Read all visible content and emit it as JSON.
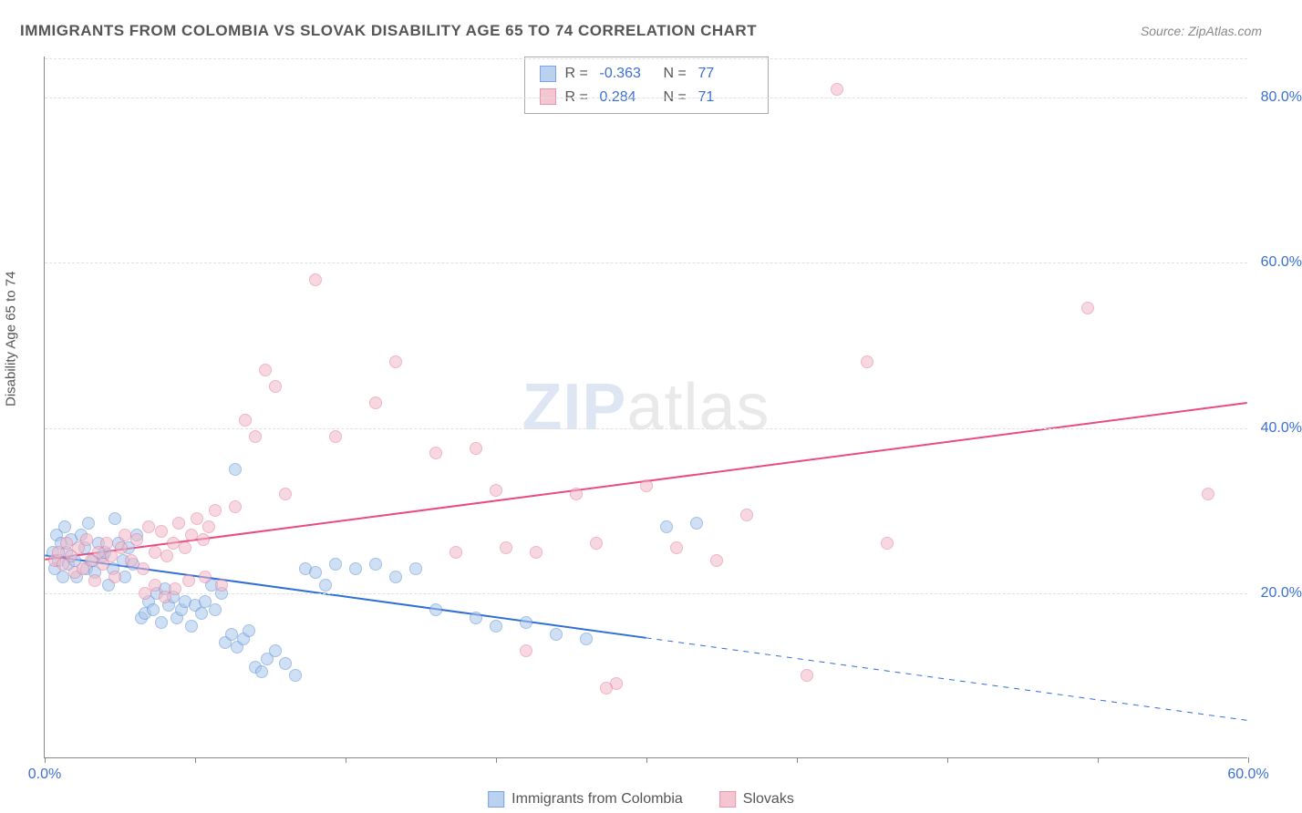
{
  "title": "IMMIGRANTS FROM COLOMBIA VS SLOVAK DISABILITY AGE 65 TO 74 CORRELATION CHART",
  "source": "Source: ZipAtlas.com",
  "y_axis_label": "Disability Age 65 to 74",
  "watermark_bold": "ZIP",
  "watermark_rest": "atlas",
  "chart": {
    "type": "scatter",
    "xlim": [
      0,
      60
    ],
    "ylim": [
      0,
      85
    ],
    "x_tick_origin_label": "0.0%",
    "x_tick_end_label": "60.0%",
    "x_tick_positions": [
      0,
      7.5,
      15,
      22.5,
      30,
      37.5,
      45,
      52.5,
      60
    ],
    "y_ticks": [
      20,
      40,
      60,
      80
    ],
    "y_tick_labels": [
      "20.0%",
      "40.0%",
      "60.0%",
      "80.0%"
    ],
    "grid_color": "#e0e0e0",
    "background_color": "#ffffff",
    "axis_color": "#888888",
    "tick_label_color": "#3b6fd6",
    "marker_radius": 7,
    "marker_stroke_width": 1,
    "series": [
      {
        "id": "colombia",
        "label": "Immigrants from Colombia",
        "fill": "#a9c6ec",
        "stroke": "#5a8fd6",
        "fill_opacity": 0.55,
        "R": "-0.363",
        "N": "77",
        "trend": {
          "x1": 0,
          "y1": 24.5,
          "x2": 30,
          "y2": 14.5,
          "x3": 60,
          "y3": 4.5,
          "color": "#2f6fd6",
          "width": 2
        },
        "points": [
          [
            0.4,
            25
          ],
          [
            0.5,
            23
          ],
          [
            0.6,
            27
          ],
          [
            0.7,
            24
          ],
          [
            0.8,
            26
          ],
          [
            0.9,
            22
          ],
          [
            1.0,
            28
          ],
          [
            1.1,
            25
          ],
          [
            1.2,
            23.5
          ],
          [
            1.3,
            26.5
          ],
          [
            1.5,
            24
          ],
          [
            1.6,
            22
          ],
          [
            1.8,
            27
          ],
          [
            2.0,
            25.5
          ],
          [
            2.1,
            23
          ],
          [
            2.2,
            28.5
          ],
          [
            2.4,
            24
          ],
          [
            2.5,
            22.5
          ],
          [
            2.7,
            26
          ],
          [
            2.9,
            24.5
          ],
          [
            3.0,
            25
          ],
          [
            3.2,
            21
          ],
          [
            3.4,
            23
          ],
          [
            3.5,
            29
          ],
          [
            3.7,
            26
          ],
          [
            3.9,
            24
          ],
          [
            4.0,
            22
          ],
          [
            4.2,
            25.5
          ],
          [
            4.4,
            23.5
          ],
          [
            4.6,
            27
          ],
          [
            4.8,
            17
          ],
          [
            5.0,
            17.5
          ],
          [
            5.2,
            19
          ],
          [
            5.4,
            18
          ],
          [
            5.6,
            20
          ],
          [
            5.8,
            16.5
          ],
          [
            6.0,
            20.5
          ],
          [
            6.2,
            18.5
          ],
          [
            6.4,
            19.5
          ],
          [
            6.6,
            17
          ],
          [
            6.8,
            18
          ],
          [
            7.0,
            19
          ],
          [
            7.3,
            16
          ],
          [
            7.5,
            18.5
          ],
          [
            7.8,
            17.5
          ],
          [
            8.0,
            19
          ],
          [
            8.3,
            21
          ],
          [
            8.5,
            18
          ],
          [
            8.8,
            20
          ],
          [
            9.0,
            14
          ],
          [
            9.3,
            15
          ],
          [
            9.6,
            13.5
          ],
          [
            9.9,
            14.5
          ],
          [
            10.2,
            15.5
          ],
          [
            10.5,
            11
          ],
          [
            10.8,
            10.5
          ],
          [
            11.1,
            12
          ],
          [
            11.5,
            13
          ],
          [
            12.0,
            11.5
          ],
          [
            12.5,
            10
          ],
          [
            9.5,
            35
          ],
          [
            13.0,
            23
          ],
          [
            13.5,
            22.5
          ],
          [
            14.0,
            21
          ],
          [
            14.5,
            23.5
          ],
          [
            15.5,
            23
          ],
          [
            16.5,
            23.5
          ],
          [
            17.5,
            22
          ],
          [
            18.5,
            23
          ],
          [
            19.5,
            18
          ],
          [
            21.5,
            17
          ],
          [
            22.5,
            16
          ],
          [
            24.0,
            16.5
          ],
          [
            25.5,
            15
          ],
          [
            27.0,
            14.5
          ],
          [
            31.0,
            28
          ],
          [
            32.5,
            28.5
          ]
        ]
      },
      {
        "id": "slovaks",
        "label": "Slovaks",
        "fill": "#f2b9c8",
        "stroke": "#e57a9a",
        "fill_opacity": 0.55,
        "R": "0.284",
        "N": "71",
        "trend": {
          "x1": 0,
          "y1": 24,
          "x2": 60,
          "y2": 43,
          "color": "#e84c82",
          "width": 2
        },
        "points": [
          [
            0.5,
            24
          ],
          [
            0.7,
            25
          ],
          [
            0.9,
            23.5
          ],
          [
            1.1,
            26
          ],
          [
            1.3,
            24.5
          ],
          [
            1.5,
            22.5
          ],
          [
            1.7,
            25.5
          ],
          [
            1.9,
            23
          ],
          [
            2.1,
            26.5
          ],
          [
            2.3,
            24
          ],
          [
            2.5,
            21.5
          ],
          [
            2.7,
            25
          ],
          [
            2.9,
            23.5
          ],
          [
            3.1,
            26
          ],
          [
            3.3,
            24.5
          ],
          [
            3.5,
            22
          ],
          [
            3.8,
            25.5
          ],
          [
            4.0,
            27
          ],
          [
            4.3,
            24
          ],
          [
            4.6,
            26.5
          ],
          [
            4.9,
            23
          ],
          [
            5.2,
            28
          ],
          [
            5.5,
            25
          ],
          [
            5.8,
            27.5
          ],
          [
            6.1,
            24.5
          ],
          [
            6.4,
            26
          ],
          [
            6.7,
            28.5
          ],
          [
            7.0,
            25.5
          ],
          [
            7.3,
            27
          ],
          [
            7.6,
            29
          ],
          [
            7.9,
            26.5
          ],
          [
            8.2,
            28
          ],
          [
            8.5,
            30
          ],
          [
            5.0,
            20
          ],
          [
            5.5,
            21
          ],
          [
            6.0,
            19.5
          ],
          [
            6.5,
            20.5
          ],
          [
            7.2,
            21.5
          ],
          [
            8.0,
            22
          ],
          [
            8.8,
            21
          ],
          [
            9.5,
            30.5
          ],
          [
            10.0,
            41
          ],
          [
            10.5,
            39
          ],
          [
            11.0,
            47
          ],
          [
            11.5,
            45
          ],
          [
            12.0,
            32
          ],
          [
            13.5,
            58
          ],
          [
            14.5,
            39
          ],
          [
            16.5,
            43
          ],
          [
            17.5,
            48
          ],
          [
            19.5,
            37
          ],
          [
            20.5,
            25
          ],
          [
            21.5,
            37.5
          ],
          [
            22.5,
            32.5
          ],
          [
            23.0,
            25.5
          ],
          [
            24.0,
            13
          ],
          [
            24.5,
            25
          ],
          [
            26.5,
            32
          ],
          [
            27.5,
            26
          ],
          [
            28.5,
            9
          ],
          [
            30.0,
            33
          ],
          [
            31.5,
            25.5
          ],
          [
            33.5,
            24
          ],
          [
            35.0,
            29.5
          ],
          [
            38.0,
            10
          ],
          [
            39.5,
            81
          ],
          [
            41.0,
            48
          ],
          [
            42.0,
            26
          ],
          [
            52.0,
            54.5
          ],
          [
            58.0,
            32
          ],
          [
            28.0,
            8.5
          ]
        ]
      }
    ],
    "stats_box": {
      "r_label": "R =",
      "n_label": "N ="
    },
    "bottom_legend": {
      "series1_label": "Immigrants from Colombia",
      "series2_label": "Slovaks"
    }
  }
}
